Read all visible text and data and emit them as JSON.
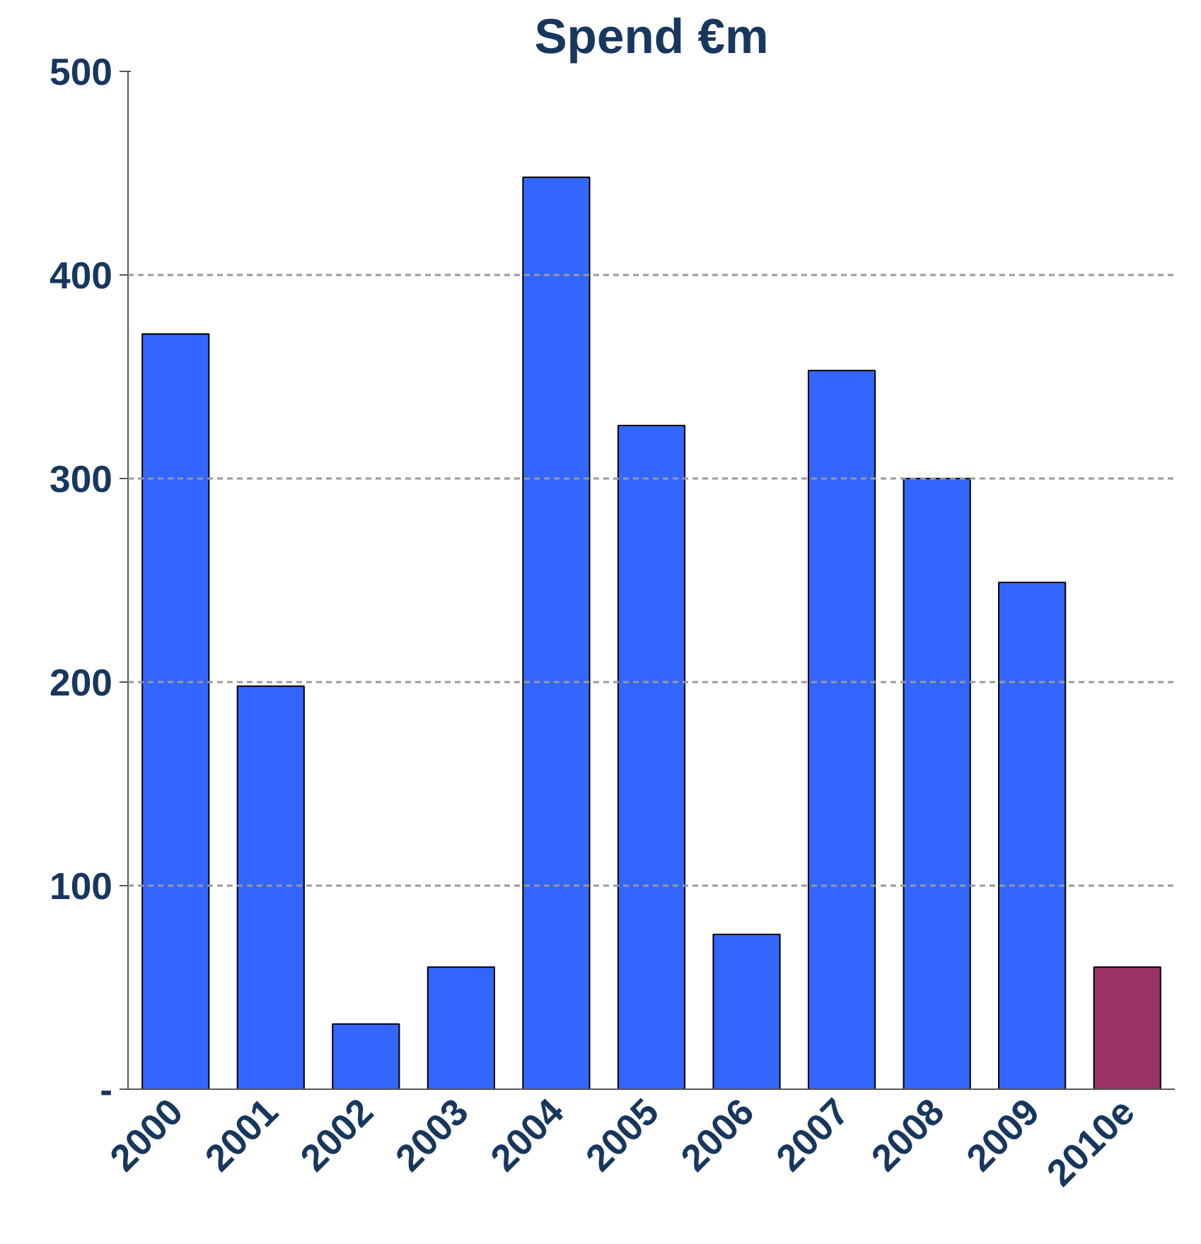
{
  "chart_data": {
    "type": "bar",
    "title": "Spend €m",
    "categories": [
      "2000",
      "2001",
      "2002",
      "2003",
      "2004",
      "2005",
      "2006",
      "2007",
      "2008",
      "2009",
      "2010e"
    ],
    "values": [
      371,
      198,
      32,
      60,
      448,
      326,
      76,
      353,
      300,
      249,
      60
    ],
    "colors": [
      "#3366ff",
      "#3366ff",
      "#3366ff",
      "#3366ff",
      "#3366ff",
      "#3366ff",
      "#3366ff",
      "#3366ff",
      "#3366ff",
      "#3366ff",
      "#993366"
    ],
    "ylim": [
      0,
      500
    ],
    "yticks": [
      {
        "value": 0,
        "label": "-"
      },
      100,
      200,
      300,
      400,
      500
    ],
    "grid": "y"
  }
}
